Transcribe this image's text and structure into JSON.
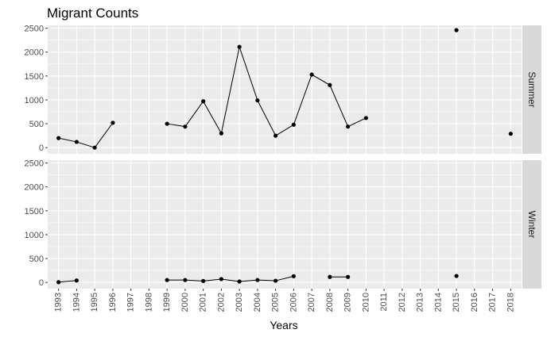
{
  "chart_data": {
    "type": "line",
    "title": "Migrant Counts",
    "xlabel": "Years",
    "ylabel": "",
    "x_ticks": [
      "1993",
      "1994",
      "1995",
      "1996",
      "1997",
      "1998",
      "1999",
      "2000",
      "2001",
      "2002",
      "2003",
      "2004",
      "2005",
      "2006",
      "2007",
      "2008",
      "2009",
      "2010",
      "2011",
      "2012",
      "2013",
      "2014",
      "2015",
      "2016",
      "2017",
      "2018"
    ],
    "y_ticks": [
      0,
      500,
      1000,
      1500,
      2000,
      2500
    ],
    "xlim": [
      1992.4,
      2018.6
    ],
    "ylim": [
      -130,
      2560
    ],
    "grid": true,
    "facet_strip_position": "right",
    "panel_background": "#ebebeb",
    "strip_background": "#d9d9d9",
    "point_color": "#000000",
    "line_color": "#000000",
    "facets": [
      {
        "name": "Summer",
        "points": [
          {
            "x": 1993,
            "y": 200
          },
          {
            "x": 1994,
            "y": 120
          },
          {
            "x": 1995,
            "y": 0
          },
          {
            "x": 1996,
            "y": 520
          },
          {
            "x": 1999,
            "y": 500
          },
          {
            "x": 2000,
            "y": 440
          },
          {
            "x": 2001,
            "y": 970
          },
          {
            "x": 2002,
            "y": 300
          },
          {
            "x": 2003,
            "y": 2110
          },
          {
            "x": 2004,
            "y": 990
          },
          {
            "x": 2005,
            "y": 250
          },
          {
            "x": 2006,
            "y": 480
          },
          {
            "x": 2007,
            "y": 1530
          },
          {
            "x": 2008,
            "y": 1310
          },
          {
            "x": 2009,
            "y": 440
          },
          {
            "x": 2010,
            "y": 620
          },
          {
            "x": 2015,
            "y": 2460
          },
          {
            "x": 2018,
            "y": 290
          }
        ],
        "line_segments": [
          [
            1993,
            1994,
            1995,
            1996
          ],
          [
            1999,
            2000,
            2001,
            2002,
            2003,
            2004,
            2005,
            2006,
            2007,
            2008,
            2009,
            2010
          ]
        ]
      },
      {
        "name": "Winter",
        "points": [
          {
            "x": 1993,
            "y": 5
          },
          {
            "x": 1994,
            "y": 40
          },
          {
            "x": 1999,
            "y": 50
          },
          {
            "x": 2000,
            "y": 50
          },
          {
            "x": 2001,
            "y": 30
          },
          {
            "x": 2002,
            "y": 70
          },
          {
            "x": 2003,
            "y": 20
          },
          {
            "x": 2004,
            "y": 50
          },
          {
            "x": 2005,
            "y": 35
          },
          {
            "x": 2006,
            "y": 130
          },
          {
            "x": 2008,
            "y": 115
          },
          {
            "x": 2009,
            "y": 115
          },
          {
            "x": 2015,
            "y": 135
          }
        ],
        "line_segments": [
          [
            1993,
            1994
          ],
          [
            1999,
            2000,
            2001,
            2002,
            2003,
            2004,
            2005,
            2006
          ],
          [
            2008,
            2009
          ]
        ]
      }
    ]
  }
}
